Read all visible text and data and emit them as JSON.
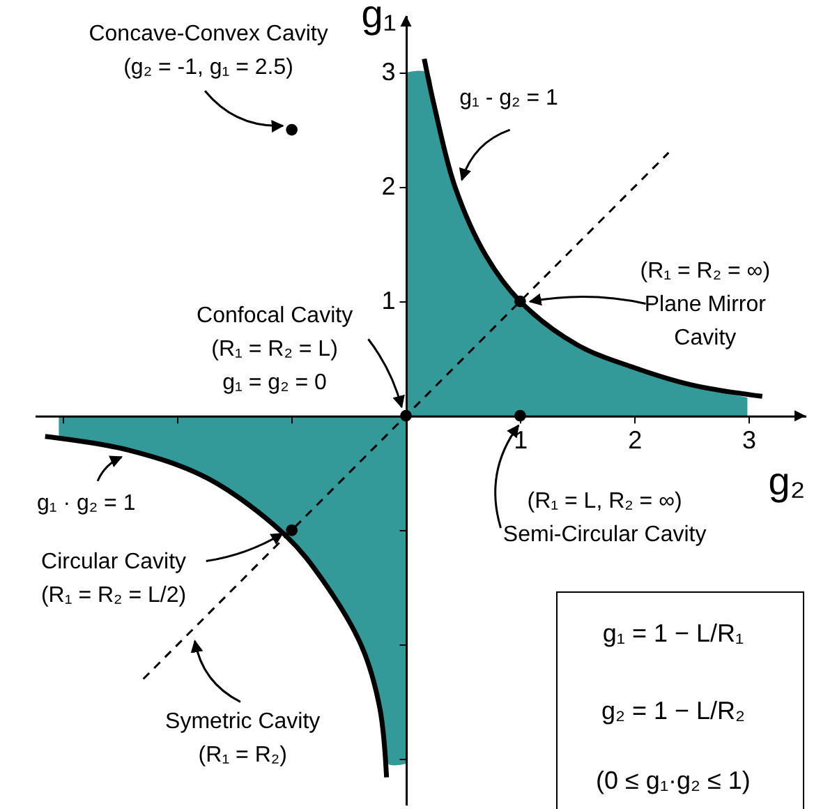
{
  "chart_data": {
    "type": "line",
    "xlabel": "g₂",
    "ylabel": "g₁",
    "xlim": [
      -3.25,
      3.5
    ],
    "ylim": [
      -3.4,
      3.5
    ],
    "xticks": [
      {
        "value": -3,
        "label": null
      },
      {
        "value": -2,
        "label": null
      },
      {
        "value": -1,
        "label": null
      },
      1,
      2,
      3
    ],
    "yticks": [
      {
        "value": -3,
        "label": null
      },
      {
        "value": -2,
        "label": null
      },
      {
        "value": -1,
        "label": null
      },
      1,
      2,
      3
    ],
    "series": [
      {
        "type": "area",
        "color": "#339999",
        "x": [
          0,
          0.19,
          0.25,
          0.43,
          0.7,
          1,
          1.5,
          2,
          2.5,
          2.99
        ],
        "values": [
          3,
          3,
          2.7,
          2,
          1.4,
          1,
          0.62,
          0.42,
          0.27,
          0.16
        ]
      },
      {
        "type": "area",
        "color": "#339999",
        "x": [
          -3.04,
          -2.43,
          -1.73,
          -1.05,
          -0.72,
          -0.39,
          -0.23,
          -0.16,
          0
        ],
        "values": [
          -0.2,
          -0.3,
          -0.55,
          -1.05,
          -1.45,
          -2.01,
          -2.55,
          -3.04,
          -3.04
        ]
      },
      {
        "color": "#000000",
        "x": [
          0.16,
          0.25,
          0.43,
          0.7,
          1,
          1.5,
          2,
          2.5,
          3.12
        ],
        "values": [
          3.12,
          2.7,
          2,
          1.4,
          1,
          0.62,
          0.42,
          0.27,
          0.17
        ]
      },
      {
        "color": "#000000",
        "x": [
          -3.16,
          -2.43,
          -1.73,
          -1.05,
          -0.72,
          -0.39,
          -0.23,
          -0.17
        ],
        "values": [
          -0.18,
          -0.3,
          -0.55,
          -1.05,
          -1.45,
          -2.01,
          -2.55,
          -3.16
        ]
      },
      {
        "color": "#000000",
        "line_style": "dashed",
        "x": [
          -2.3,
          2.3
        ],
        "values": [
          -2.3,
          2.3
        ]
      },
      {
        "type": "scatter",
        "color": "#000000",
        "marker": "circle",
        "x": [
          -1,
          0,
          1,
          1,
          -1
        ],
        "values": [
          2.5,
          0,
          1,
          0,
          -1
        ]
      }
    ],
    "annotations": [
      {
        "text": "Concave-Convex Cavity\n(g₂ = -1, g₁ = 2.5)",
        "x": -1,
        "y": 2.5
      },
      {
        "text": "g₁ - g₂ = 1",
        "x": 0.43,
        "y": 2
      },
      {
        "text": "(R₁ = R₂ = ∞)\nPlane Mirror\nCavity",
        "x": 1,
        "y": 1
      },
      {
        "text": "Confocal Cavity\n(R₁ = R₂ = L)\ng₁ = g₂ = 0",
        "x": 0,
        "y": 0
      },
      {
        "text": "(R₁ = L, R₂ = ∞)\nSemi-Circular Cavity",
        "x": 1,
        "y": 0
      },
      {
        "text": "g₁ · g₂ = 1",
        "x": -2.43,
        "y": -0.3
      },
      {
        "text": "Circular Cavity\n(R₁ = R₂ = L/2)",
        "x": -1,
        "y": -1
      },
      {
        "text": "Symetric Cavity\n(R₁ = R₂)",
        "x": -1.9,
        "y": -1.9
      },
      "g₁ = 1 − L/R₁",
      "g₂ = 1 − L/R₂",
      "(0 ≤ g₁·g₂ ≤ 1)"
    ]
  }
}
